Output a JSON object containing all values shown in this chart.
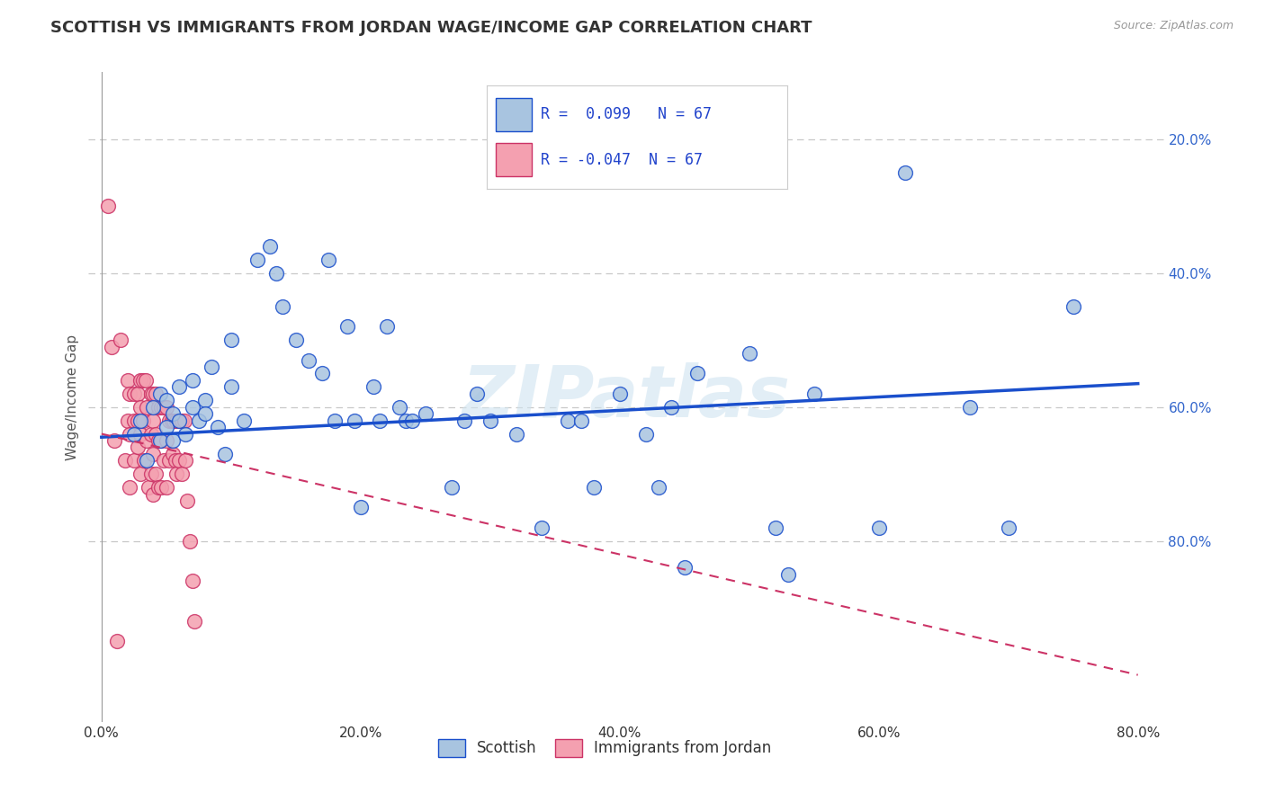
{
  "title": "SCOTTISH VS IMMIGRANTS FROM JORDAN WAGE/INCOME GAP CORRELATION CHART",
  "source": "Source: ZipAtlas.com",
  "ylabel": "Wage/Income Gap",
  "x_tick_labels": [
    "0.0%",
    "20.0%",
    "40.0%",
    "60.0%",
    "80.0%"
  ],
  "y_tick_labels_right": [
    "80.0%",
    "60.0%",
    "40.0%",
    "20.0%"
  ],
  "x_ticks": [
    0.0,
    0.2,
    0.4,
    0.6,
    0.8
  ],
  "y_ticks": [
    0.2,
    0.4,
    0.6,
    0.8
  ],
  "xlim": [
    -0.01,
    0.82
  ],
  "ylim": [
    -0.07,
    0.9
  ],
  "legend_labels": [
    "Scottish",
    "Immigrants from Jordan"
  ],
  "legend_R_blue": "R =  0.099",
  "legend_R_pink": "R = -0.047",
  "legend_N": "N = 67",
  "scatter_blue_x": [
    0.025,
    0.03,
    0.035,
    0.04,
    0.045,
    0.045,
    0.05,
    0.05,
    0.055,
    0.055,
    0.06,
    0.06,
    0.065,
    0.07,
    0.07,
    0.075,
    0.08,
    0.08,
    0.085,
    0.09,
    0.095,
    0.1,
    0.1,
    0.11,
    0.12,
    0.13,
    0.135,
    0.14,
    0.15,
    0.16,
    0.17,
    0.175,
    0.18,
    0.19,
    0.195,
    0.2,
    0.21,
    0.215,
    0.22,
    0.23,
    0.235,
    0.24,
    0.25,
    0.27,
    0.28,
    0.29,
    0.3,
    0.32,
    0.34,
    0.36,
    0.37,
    0.38,
    0.4,
    0.42,
    0.43,
    0.44,
    0.45,
    0.46,
    0.5,
    0.52,
    0.53,
    0.55,
    0.6,
    0.62,
    0.67,
    0.7,
    0.75
  ],
  "scatter_blue_y": [
    0.36,
    0.38,
    0.32,
    0.4,
    0.35,
    0.42,
    0.37,
    0.41,
    0.39,
    0.35,
    0.38,
    0.43,
    0.36,
    0.44,
    0.4,
    0.38,
    0.41,
    0.39,
    0.46,
    0.37,
    0.33,
    0.5,
    0.43,
    0.38,
    0.62,
    0.64,
    0.6,
    0.55,
    0.5,
    0.47,
    0.45,
    0.62,
    0.38,
    0.52,
    0.38,
    0.25,
    0.43,
    0.38,
    0.52,
    0.4,
    0.38,
    0.38,
    0.39,
    0.28,
    0.38,
    0.42,
    0.38,
    0.36,
    0.22,
    0.38,
    0.38,
    0.28,
    0.42,
    0.36,
    0.28,
    0.4,
    0.16,
    0.45,
    0.48,
    0.22,
    0.15,
    0.42,
    0.22,
    0.75,
    0.4,
    0.22,
    0.55
  ],
  "scatter_pink_x": [
    0.005,
    0.008,
    0.01,
    0.012,
    0.015,
    0.018,
    0.02,
    0.02,
    0.022,
    0.022,
    0.022,
    0.025,
    0.025,
    0.025,
    0.028,
    0.028,
    0.028,
    0.03,
    0.03,
    0.03,
    0.03,
    0.032,
    0.032,
    0.033,
    0.034,
    0.035,
    0.035,
    0.036,
    0.038,
    0.038,
    0.038,
    0.04,
    0.04,
    0.04,
    0.04,
    0.042,
    0.042,
    0.042,
    0.044,
    0.044,
    0.044,
    0.046,
    0.046,
    0.046,
    0.048,
    0.048,
    0.05,
    0.05,
    0.05,
    0.052,
    0.052,
    0.054,
    0.055,
    0.056,
    0.057,
    0.058,
    0.058,
    0.06,
    0.06,
    0.062,
    0.062,
    0.064,
    0.065,
    0.066,
    0.068,
    0.07,
    0.072
  ],
  "scatter_pink_y": [
    0.7,
    0.49,
    0.35,
    0.05,
    0.5,
    0.32,
    0.44,
    0.38,
    0.42,
    0.36,
    0.28,
    0.42,
    0.38,
    0.32,
    0.42,
    0.38,
    0.34,
    0.44,
    0.4,
    0.36,
    0.3,
    0.44,
    0.38,
    0.32,
    0.44,
    0.4,
    0.35,
    0.28,
    0.42,
    0.36,
    0.3,
    0.42,
    0.38,
    0.33,
    0.27,
    0.42,
    0.36,
    0.3,
    0.4,
    0.35,
    0.28,
    0.4,
    0.35,
    0.28,
    0.4,
    0.32,
    0.4,
    0.35,
    0.28,
    0.38,
    0.32,
    0.38,
    0.33,
    0.38,
    0.32,
    0.38,
    0.3,
    0.38,
    0.32,
    0.38,
    0.3,
    0.38,
    0.32,
    0.26,
    0.2,
    0.14,
    0.08
  ],
  "blue_line_x0": 0.0,
  "blue_line_x1": 0.8,
  "blue_line_y0": 0.355,
  "blue_line_y1": 0.435,
  "pink_line_x0": 0.0,
  "pink_line_x1": 0.8,
  "pink_line_y0": 0.36,
  "pink_line_y1": 0.0,
  "blue_scatter_color": "#a8c4e0",
  "pink_scatter_color": "#f4a0b0",
  "blue_line_color": "#1a4fcc",
  "pink_line_color": "#cc3366",
  "watermark": "ZIPatlas",
  "grid_color": "#c8c8c8",
  "title_fontsize": 13,
  "axis_tick_fontsize": 11,
  "ylabel_fontsize": 11
}
